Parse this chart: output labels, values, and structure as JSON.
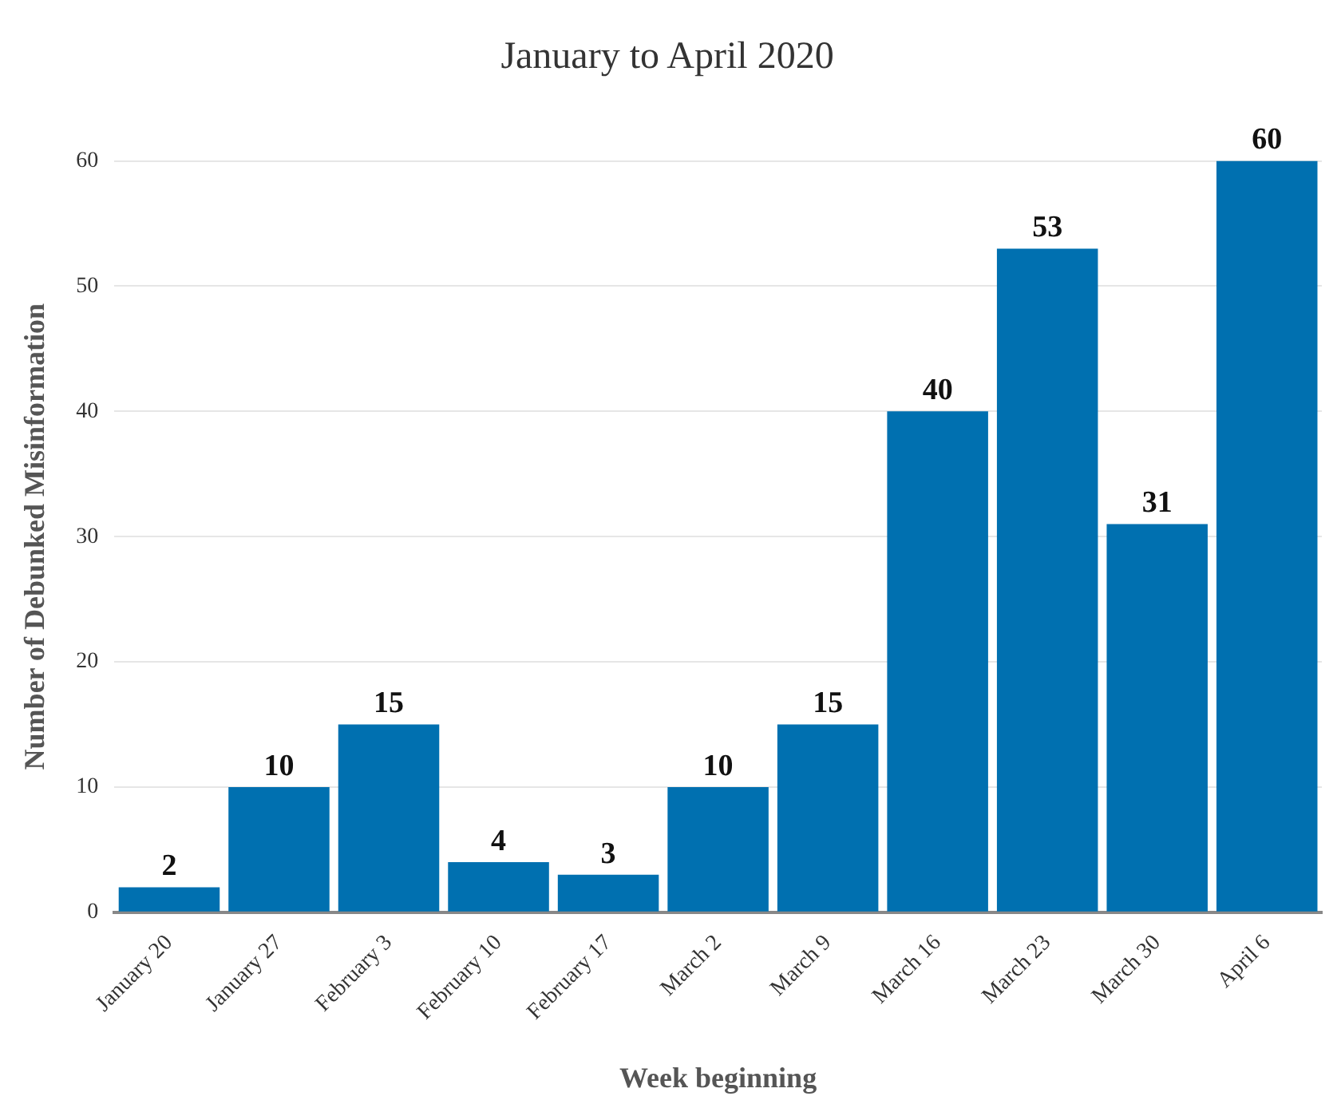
{
  "chart_data": {
    "type": "bar",
    "title": "January to April 2020",
    "xlabel": "Week beginning",
    "ylabel": "Number of Debunked Misinformation",
    "categories": [
      "January 20",
      "January 27",
      "February 3",
      "February 10",
      "February 17",
      "March 2",
      "March 9",
      "March 16",
      "March 23",
      "March 30",
      "April 6"
    ],
    "values": [
      2,
      10,
      15,
      4,
      3,
      10,
      15,
      40,
      53,
      31,
      60
    ],
    "color": "#0070b0",
    "ylim": [
      0,
      60
    ],
    "yticks": [
      0,
      10,
      20,
      30,
      40,
      50,
      60
    ],
    "grid": "y",
    "data_labels": true,
    "legend": false
  }
}
